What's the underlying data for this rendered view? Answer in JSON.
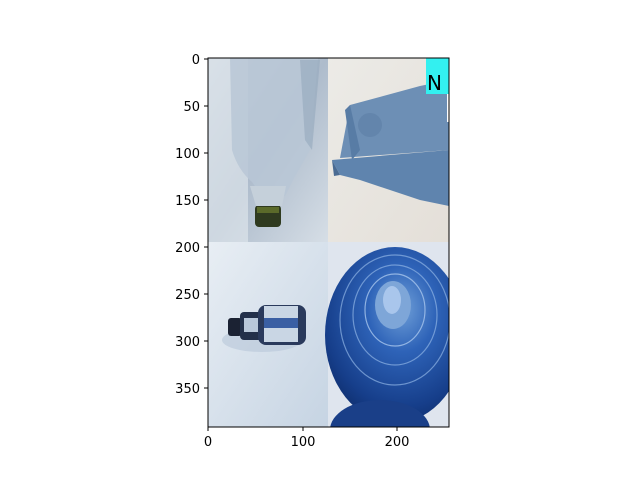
{
  "figure": {
    "type": "image-grid",
    "x_ticks": [
      "0",
      "100",
      "200"
    ],
    "y_ticks": [
      "0",
      "50",
      "100",
      "150",
      "200",
      "250",
      "300",
      "350"
    ],
    "image_extent": {
      "width": 256,
      "height": 392
    },
    "overlay_text": "N",
    "tiles": [
      {
        "name": "tile-plastic-jug",
        "subject": "translucent plastic jug lying on its side"
      },
      {
        "name": "tile-blue-foam",
        "subject": "blue foam / cardboard sheet"
      },
      {
        "name": "tile-beer-bottle",
        "subject": "brown bottle with blue label"
      },
      {
        "name": "tile-blue-bowl",
        "subject": "blue ribbed plastic lid"
      }
    ],
    "colors": {
      "tick": "#000000",
      "overlay_box": "#33f0f0",
      "overlay_text": "#000000"
    }
  }
}
